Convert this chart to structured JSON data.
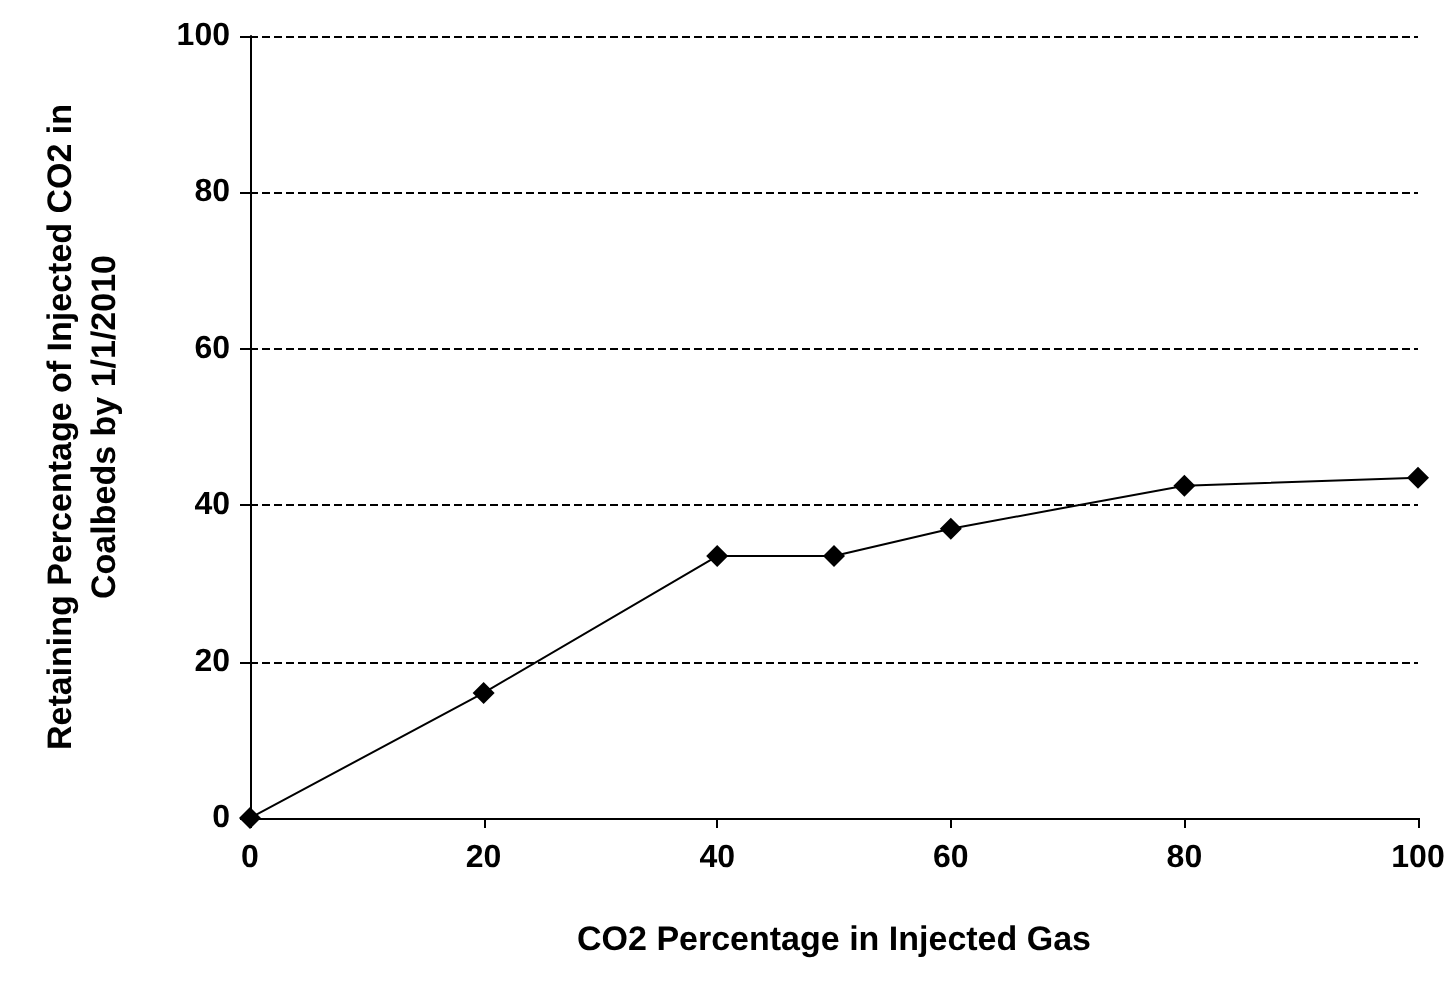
{
  "chart_data": {
    "type": "line",
    "xlabel": "CO2 Percentage in Injected Gas",
    "ylabel": "Retaining Percentage of Injected CO2 in Coalbeds by 1/1/2010",
    "x": [
      0,
      20,
      40,
      50,
      60,
      80,
      100
    ],
    "series": [
      {
        "color": "#000000",
        "values": [
          0,
          16,
          33.5,
          33.5,
          37,
          42.5,
          43.5
        ]
      }
    ],
    "xlim": [
      0,
      100
    ],
    "xticks": [
      0,
      20,
      40,
      60,
      80,
      100
    ],
    "ylim": [
      0,
      100
    ],
    "yticks": [
      0,
      20,
      40,
      60,
      80,
      100
    ],
    "grid": "y",
    "marker": "diamond",
    "line_style": "solid"
  }
}
